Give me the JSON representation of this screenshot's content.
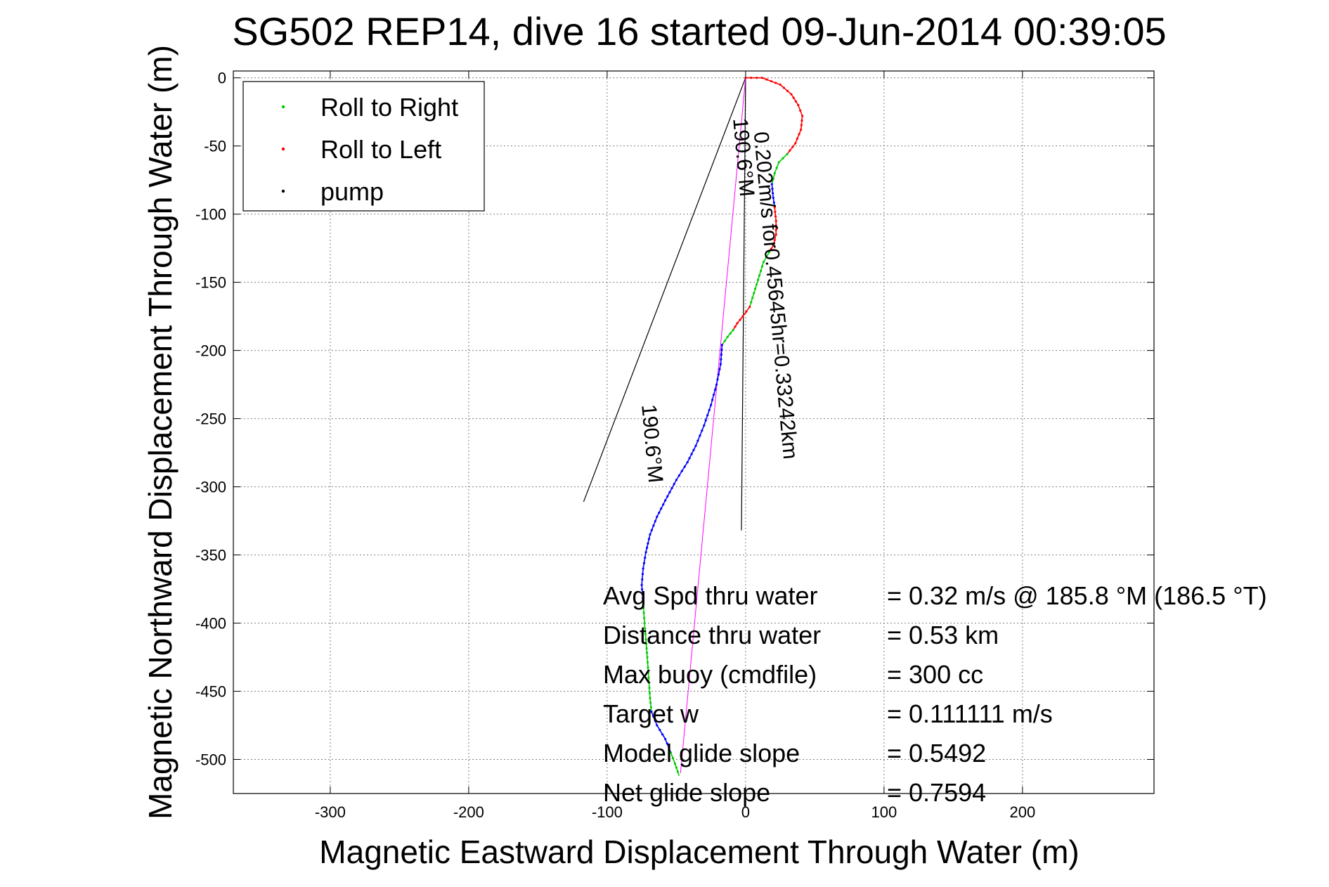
{
  "chart_data": {
    "type": "line",
    "title": "SG502 REP14, dive 16 started 09-Jun-2014 00:39:05",
    "xlabel": "Magnetic Eastward Displacement Through Water (m)",
    "ylabel": "Magnetic Northward Displacement Through Water (m)",
    "xlim": [
      -370,
      295
    ],
    "ylim": [
      -525,
      5
    ],
    "x_ticks": [
      -300,
      -200,
      -100,
      0,
      100,
      200
    ],
    "y_ticks": [
      0,
      -50,
      -100,
      -150,
      -200,
      -250,
      -300,
      -350,
      -400,
      -450,
      -500
    ],
    "x_tick_labels": [
      "-300",
      "-200",
      "-100",
      "0",
      "100",
      "200"
    ],
    "y_tick_labels": [
      "0",
      "-50",
      "-100",
      "-150",
      "-200",
      "-250",
      "-300",
      "-350",
      "-400",
      "-450",
      "-500"
    ],
    "grid": true,
    "legend_position": "top-left",
    "legend": [
      {
        "label": "Roll to Right",
        "color": "#00cc00"
      },
      {
        "label": "Roll to Left",
        "color": "#ff0000"
      },
      {
        "label": "pump",
        "color": "#000000"
      }
    ],
    "colors": {
      "track": "#0000ff",
      "roll_right": "#00cc00",
      "roll_left": "#ff0000",
      "pump": "#000000",
      "current": "#ff00ff"
    },
    "series": [
      {
        "color": "#ff0000",
        "points": [
          [
            0,
            0
          ],
          [
            12,
            0
          ],
          [
            25,
            -5
          ],
          [
            33,
            -12
          ],
          [
            38,
            -20
          ],
          [
            41,
            -28
          ],
          [
            40,
            -38
          ],
          [
            36,
            -48
          ],
          [
            30,
            -56
          ]
        ]
      },
      {
        "color": "#00cc00",
        "points": [
          [
            30,
            -56
          ],
          [
            24,
            -62
          ],
          [
            21,
            -70
          ],
          [
            19,
            -78
          ]
        ]
      },
      {
        "color": "#0000ff",
        "points": [
          [
            19,
            -78
          ],
          [
            20,
            -88
          ],
          [
            21,
            -95
          ]
        ]
      },
      {
        "color": "#ff0000",
        "points": [
          [
            21,
            -95
          ],
          [
            22,
            -105
          ],
          [
            22,
            -115
          ],
          [
            20,
            -123
          ],
          [
            17,
            -128
          ]
        ]
      },
      {
        "color": "#00cc00",
        "points": [
          [
            17,
            -128
          ],
          [
            13,
            -135
          ],
          [
            10,
            -145
          ],
          [
            6,
            -158
          ],
          [
            3,
            -168
          ]
        ]
      },
      {
        "color": "#ff0000",
        "points": [
          [
            3,
            -168
          ],
          [
            -2,
            -175
          ],
          [
            -6,
            -180
          ],
          [
            -9,
            -185
          ]
        ]
      },
      {
        "color": "#00cc00",
        "points": [
          [
            -9,
            -185
          ],
          [
            -13,
            -190
          ],
          [
            -17,
            -196
          ]
        ]
      },
      {
        "color": "#0000ff",
        "points": [
          [
            -17,
            -196
          ],
          [
            -18,
            -210
          ],
          [
            -21,
            -225
          ],
          [
            -25,
            -240
          ],
          [
            -30,
            -255
          ],
          [
            -36,
            -270
          ],
          [
            -42,
            -282
          ],
          [
            -50,
            -295
          ],
          [
            -58,
            -310
          ],
          [
            -64,
            -322
          ],
          [
            -69,
            -335
          ]
        ]
      },
      {
        "color": "#0000ff",
        "points": [
          [
            -69,
            -335
          ],
          [
            -72,
            -348
          ],
          [
            -74,
            -360
          ],
          [
            -75,
            -372
          ],
          [
            -74,
            -385
          ]
        ]
      },
      {
        "color": "#00cc00",
        "points": [
          [
            -74,
            -385
          ],
          [
            -73,
            -400
          ],
          [
            -72,
            -412
          ],
          [
            -71,
            -425
          ],
          [
            -70,
            -440
          ],
          [
            -69,
            -455
          ],
          [
            -68,
            -465
          ]
        ]
      },
      {
        "color": "#0000ff",
        "points": [
          [
            -68,
            -465
          ],
          [
            -64,
            -475
          ],
          [
            -58,
            -485
          ],
          [
            -54,
            -495
          ]
        ]
      },
      {
        "color": "#00cc00",
        "points": [
          [
            -54,
            -495
          ],
          [
            -51,
            -503
          ],
          [
            -48,
            -512
          ]
        ]
      }
    ],
    "reference_lines": [
      {
        "color": "#000000",
        "points": [
          [
            0,
            0
          ],
          [
            -117,
            -311
          ]
        ]
      },
      {
        "color": "#000000",
        "points": [
          [
            0,
            0
          ],
          [
            -3,
            -332
          ]
        ]
      },
      {
        "color": "#ff00ff",
        "points": [
          [
            0,
            0
          ],
          [
            -47,
            -510
          ]
        ]
      }
    ],
    "annotations": [
      {
        "text": "0.202m/s for0.45645hr=0.33242km",
        "x": 6,
        "y": -40,
        "angle_deg": 84.8
      },
      {
        "text": "190.6°M",
        "x": -9,
        "y": -30,
        "angle_deg": 84.8
      },
      {
        "text": "190.6°M",
        "x": -75,
        "y": -240,
        "angle_deg": 84.8
      }
    ],
    "stats": [
      {
        "label": "Avg Spd thru water",
        "value": "=  0.32 m/s @ 185.8 °M (186.5 °T)"
      },
      {
        "label": "Distance thru water",
        "value": "=  0.53 km"
      },
      {
        "label": "Max buoy (cmdfile)",
        "value": "= 300 cc"
      },
      {
        "label": "Target w",
        "value": "= 0.111111 m/s"
      },
      {
        "label": "Model glide slope",
        "value": "= 0.5492"
      },
      {
        "label": "Net glide slope",
        "value": "= 0.7594"
      }
    ]
  }
}
